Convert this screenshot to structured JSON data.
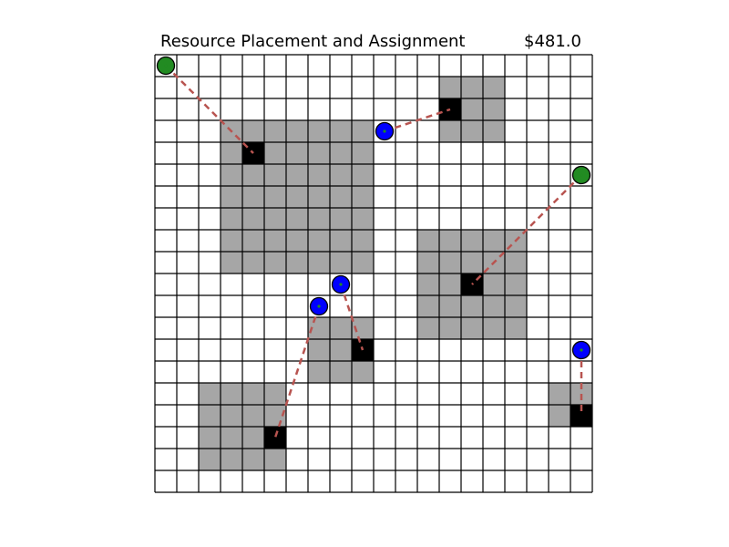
{
  "title": "Resource Placement and Assignment",
  "cost": "$481.0",
  "grid": {
    "cols": 20,
    "rows": 20
  },
  "colors": {
    "empty": "#ffffff",
    "region": "#a6a6a6",
    "facility": "#000000",
    "grid_line": "#000000",
    "link": "#b85450",
    "assigned_client": "#0000ff",
    "unassigned_client": "#228b22",
    "client_dot": "#228b22"
  },
  "regions": [
    {
      "id": "region-a",
      "col_start": 3,
      "row_start": 3,
      "col_end": 9,
      "row_end": 9
    },
    {
      "id": "region-b",
      "col_start": 13,
      "row_start": 1,
      "col_end": 15,
      "row_end": 3
    },
    {
      "id": "region-c",
      "col_start": 12,
      "row_start": 8,
      "col_end": 16,
      "row_end": 12
    },
    {
      "id": "region-d",
      "col_start": 7,
      "row_start": 12,
      "col_end": 9,
      "row_end": 14
    },
    {
      "id": "region-e",
      "col_start": 2,
      "row_start": 15,
      "col_end": 5,
      "row_end": 18
    },
    {
      "id": "region-f",
      "col_start": 18,
      "row_start": 15,
      "col_end": 19,
      "row_end": 16
    }
  ],
  "facilities": [
    {
      "id": "f1",
      "col": 4,
      "row": 4
    },
    {
      "id": "f2",
      "col": 13,
      "row": 2
    },
    {
      "id": "f3",
      "col": 14,
      "row": 10
    },
    {
      "id": "f4",
      "col": 9,
      "row": 13
    },
    {
      "id": "f5",
      "col": 5,
      "row": 17
    },
    {
      "id": "f6",
      "col": 19,
      "row": 16
    }
  ],
  "clients": [
    {
      "id": "c1",
      "col": 0.5,
      "row": 0.5,
      "kind": "unassigned",
      "facility": "f1"
    },
    {
      "id": "c2",
      "col": 10.5,
      "row": 3.5,
      "kind": "assigned",
      "facility": "f2"
    },
    {
      "id": "c3",
      "col": 19.5,
      "row": 5.5,
      "kind": "unassigned",
      "facility": "f3"
    },
    {
      "id": "c4",
      "col": 8.5,
      "row": 10.5,
      "kind": "assigned",
      "facility": "f4"
    },
    {
      "id": "c5",
      "col": 7.5,
      "row": 11.5,
      "kind": "assigned",
      "facility": "f5"
    },
    {
      "id": "c6",
      "col": 19.5,
      "row": 13.5,
      "kind": "assigned",
      "facility": "f6"
    }
  ]
}
